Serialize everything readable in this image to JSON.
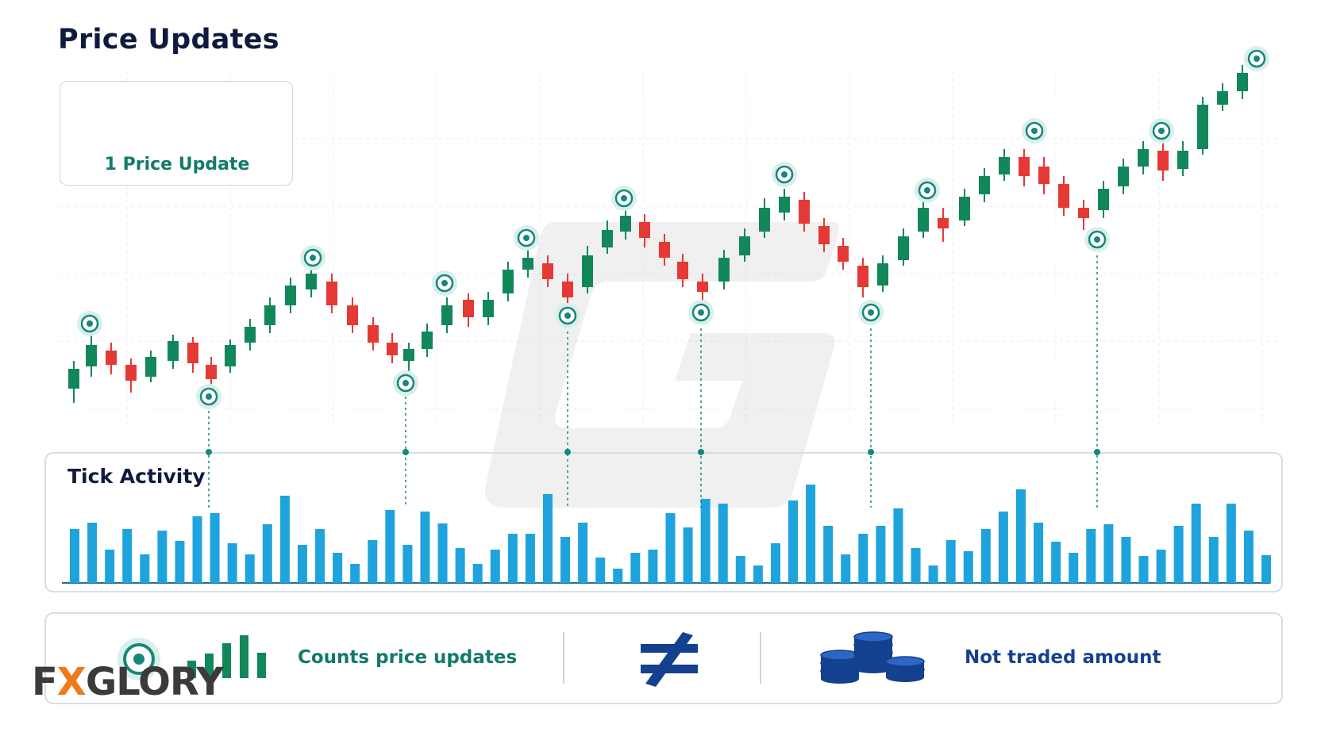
{
  "title": "Price Updates",
  "legend": {
    "label": "1 Price Update",
    "icons": [
      "tick-marker-icon",
      "arrow-right-icon",
      "candlestick-icon"
    ]
  },
  "tick_panel": {
    "title": "Tick Activity"
  },
  "footer": {
    "counts_label": "Counts price updates",
    "not_equal_icon": "not-equal-icon",
    "not_traded_label": "Not traded amount",
    "coins_icon": "coin-stack-icon"
  },
  "brand": {
    "prefix": "F",
    "x": "X",
    "suffix": "GLORY"
  },
  "colors": {
    "bull": "#12875a",
    "bear": "#e53935",
    "marker": "#16877a",
    "bar": "#1fa3dc",
    "navy": "#14418f",
    "accent": "#f07a1a"
  }
}
